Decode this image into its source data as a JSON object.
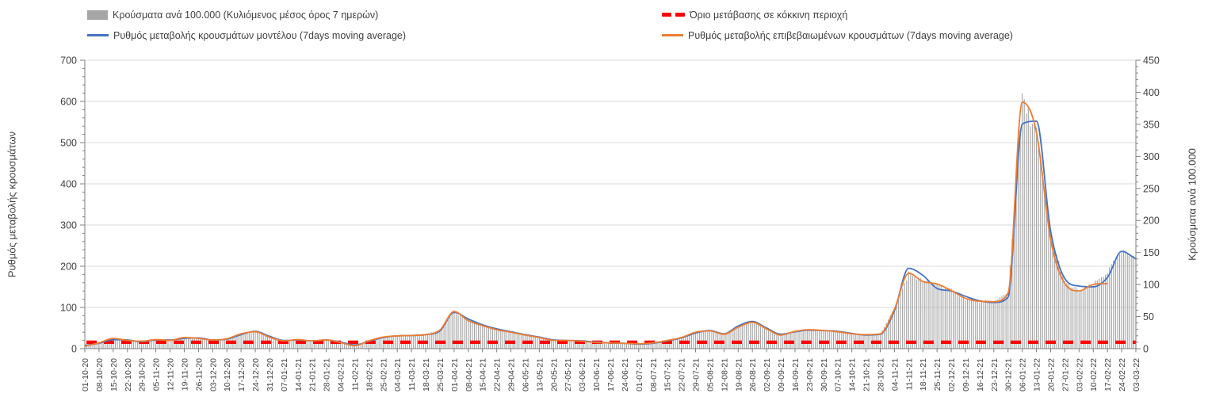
{
  "legend": {
    "items": [
      {
        "label": "Κρούσματα ανά 100.000 (Κυλιόμενος μέσος όρος 7 ημερών)",
        "marker": "gray-bar-swatch",
        "color": "#A6A6A6"
      },
      {
        "label": "Όριο μετάβασης σε κόκκινη περιοχή",
        "marker": "red-dash",
        "color": "#FF0000"
      },
      {
        "label": "Ρυθμός μεταβολής κρουσμάτων μοντέλου (7days moving average)",
        "marker": "blue-line",
        "color": "#4472C4"
      },
      {
        "label": "Ρυθμός μεταβολής επιβεβαιωμένων κρουσμάτων (7days moving average)",
        "marker": "orange-line",
        "color": "#ED7D31"
      }
    ]
  },
  "chart_data": {
    "type": "bar+line",
    "left_axis": {
      "title": "Ρυθμός μεταβολής κρουσμάτων",
      "min": 0,
      "max": 700,
      "ticks": [
        0,
        100,
        200,
        300,
        400,
        500,
        600,
        700
      ],
      "minor_step": 20
    },
    "right_axis": {
      "title": "Κρούσματα ανά 100.000",
      "min": 0,
      "max": 450,
      "ticks": [
        0,
        50,
        100,
        150,
        200,
        250,
        300,
        350,
        400,
        450
      ],
      "minor_step": 10
    },
    "x_labels": [
      "01-10-20",
      "08-10-20",
      "15-10-20",
      "22-10-20",
      "29-10-20",
      "05-11-20",
      "12-11-20",
      "19-11-20",
      "26-11-20",
      "03-12-20",
      "10-12-20",
      "17-12-20",
      "24-12-20",
      "31-12-20",
      "07-01-21",
      "14-01-21",
      "21-01-21",
      "28-01-21",
      "04-02-21",
      "11-02-21",
      "18-02-21",
      "25-02-21",
      "04-03-21",
      "11-03-21",
      "18-03-21",
      "25-03-21",
      "01-04-21",
      "08-04-21",
      "15-04-21",
      "22-04-21",
      "29-04-21",
      "06-05-21",
      "13-05-21",
      "20-05-21",
      "27-05-21",
      "03-06-21",
      "10-06-21",
      "17-06-21",
      "24-06-21",
      "01-07-21",
      "08-07-21",
      "15-07-21",
      "22-07-21",
      "29-07-21",
      "05-08-21",
      "12-08-21",
      "19-08-21",
      "26-08-21",
      "02-09-21",
      "09-09-21",
      "16-09-21",
      "23-09-21",
      "30-09-21",
      "07-10-21",
      "14-10-21",
      "21-10-21",
      "28-10-21",
      "04-11-21",
      "11-11-21",
      "18-11-21",
      "25-11-21",
      "02-12-21",
      "09-12-21",
      "16-12-21",
      "23-12-21",
      "30-12-21",
      "06-01-22",
      "13-01-22",
      "20-01-22",
      "27-01-22",
      "03-02-22",
      "10-02-22",
      "17-02-22",
      "24-02-22",
      "03-03-22"
    ],
    "series": [
      {
        "name": "Κρούσματα ανά 100.000 (Κυλιόμενος μέσος όρος 7 ημερών)",
        "type": "bar",
        "axis": "right",
        "color": "#A6A6A6",
        "daily_interpolated": true,
        "peak_day_value": 398,
        "values": [
          4,
          9,
          16,
          13,
          12,
          14,
          13,
          17,
          16,
          13,
          15,
          23,
          26,
          18,
          12,
          14,
          12,
          13,
          10,
          5,
          12,
          18,
          20,
          21,
          22,
          29,
          58,
          44,
          36,
          30,
          26,
          21,
          17,
          13,
          13,
          12,
          10,
          9,
          8,
          8,
          9,
          13,
          17,
          26,
          28,
          23,
          33,
          41,
          31,
          21,
          27,
          30,
          28,
          26,
          23,
          22,
          23,
          62,
          118,
          105,
          101,
          91,
          78,
          74,
          73,
          87,
          384,
          340,
          178,
          102,
          90,
          100,
          120,
          150,
          147
        ]
      },
      {
        "name": "Όριο μετάβασης σε κόκκινη περιοχή",
        "type": "threshold-line",
        "axis": "right",
        "color": "#FF0000",
        "dashed": true,
        "value": 10
      },
      {
        "name": "Ρυθμός μεταβολής κρουσμάτων μοντέλου (7days moving average)",
        "type": "line",
        "axis": "left",
        "color": "#4472C4",
        "values": [
          8,
          13,
          22,
          21,
          17,
          21,
          21,
          25,
          26,
          21,
          23,
          34,
          42,
          30,
          20,
          21,
          19,
          21,
          16,
          9,
          18,
          27,
          31,
          32,
          34,
          43,
          88,
          72,
          58,
          48,
          41,
          34,
          28,
          21,
          20,
          19,
          16,
          14,
          13,
          11,
          13,
          19,
          26,
          38,
          44,
          36,
          55,
          66,
          50,
          35,
          41,
          45,
          44,
          42,
          37,
          33,
          35,
          92,
          195,
          178,
          146,
          140,
          127,
          116,
          112,
          125,
          545,
          552,
          285,
          170,
          152,
          150,
          173,
          236,
          218
        ]
      },
      {
        "name": "Ρυθμός μεταβολής επιβεβαιωμένων κρουσμάτων (7days moving average)",
        "type": "line",
        "axis": "left",
        "color": "#ED7D31",
        "values": [
          6,
          14,
          25,
          20,
          18,
          22,
          20,
          27,
          25,
          21,
          24,
          36,
          41,
          28,
          19,
          22,
          19,
          21,
          15,
          7,
          19,
          28,
          31,
          32,
          34,
          45,
          90,
          68,
          56,
          46,
          40,
          33,
          27,
          20,
          20,
          18,
          15,
          14,
          13,
          12,
          14,
          20,
          27,
          40,
          43,
          35,
          52,
          64,
          48,
          33,
          42,
          46,
          44,
          41,
          36,
          34,
          36,
          96,
          183,
          163,
          157,
          141,
          122,
          115,
          114,
          135,
          598,
          525,
          265,
          158,
          140,
          156,
          158,
          null,
          null
        ]
      }
    ]
  }
}
